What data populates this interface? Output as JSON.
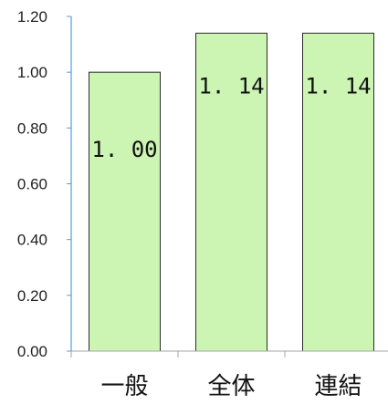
{
  "chart_data": {
    "type": "bar",
    "categories": [
      "一般",
      "全体",
      "連結"
    ],
    "values": [
      1.0,
      1.14,
      1.14
    ],
    "data_labels": [
      "1. 00",
      "1. 14",
      "1. 14"
    ],
    "ylim": [
      0,
      1.2
    ],
    "yticks": [
      "0.00",
      "0.20",
      "0.40",
      "0.60",
      "0.80",
      "1.00",
      "1.20"
    ],
    "title": "",
    "xlabel": "",
    "ylabel": "",
    "grid": false,
    "legend": "none",
    "colors": {
      "bar_fill": "#ccf5b4",
      "bar_stroke": "#2b2b2b",
      "axis": "#5b9bd5",
      "baseline": "#a6a6a6"
    }
  }
}
